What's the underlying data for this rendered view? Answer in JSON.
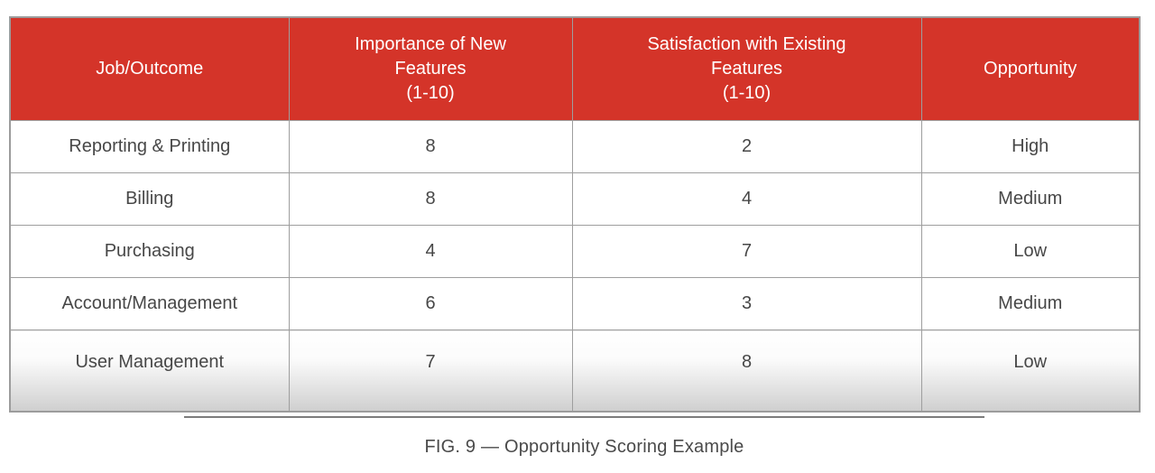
{
  "figure": {
    "caption": "FIG. 9 — Opportunity Scoring Example"
  },
  "colors": {
    "header_bg": "#d43429",
    "header_text": "#ffffff",
    "body_text": "#474747",
    "grid_line": "#9c9c9c",
    "torn_shadow": "#cfcfcf",
    "divider_line": "#7c7c7c",
    "caption_text": "#4a4a4a"
  },
  "chart_data": {
    "type": "table",
    "title": "FIG. 9 — Opportunity Scoring Example",
    "columns": [
      {
        "label": "Job/Outcome",
        "lines": [
          "Job/Outcome"
        ]
      },
      {
        "label": "Importance of New Features (1-10)",
        "lines": [
          "Importance of New",
          "Features",
          "(1-10)"
        ]
      },
      {
        "label": "Satisfaction with Existing Features (1-10)",
        "lines": [
          "Satisfaction with Existing",
          "Features",
          "(1-10)"
        ]
      },
      {
        "label": "Opportunity",
        "lines": [
          "Opportunity"
        ]
      }
    ],
    "rows": [
      {
        "job": "Reporting & Printing",
        "importance": "8",
        "satisfaction": "2",
        "opportunity": "High"
      },
      {
        "job": "Billing",
        "importance": "8",
        "satisfaction": "4",
        "opportunity": "Medium"
      },
      {
        "job": "Purchasing",
        "importance": "4",
        "satisfaction": "7",
        "opportunity": "Low"
      },
      {
        "job": "Account/Management",
        "importance": "6",
        "satisfaction": "3",
        "opportunity": "Medium"
      },
      {
        "job": "User Management",
        "importance": "7",
        "satisfaction": "8",
        "opportunity": "Low"
      }
    ]
  }
}
